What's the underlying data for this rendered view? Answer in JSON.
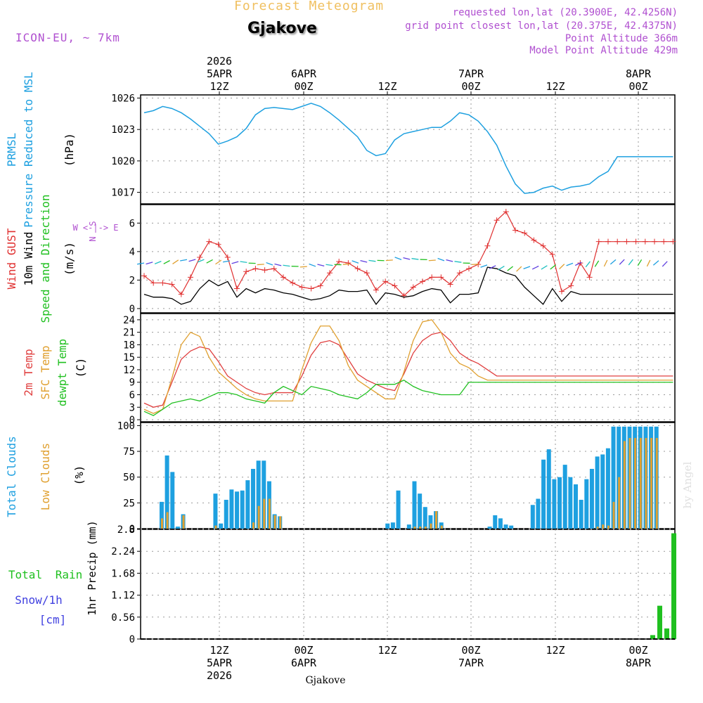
{
  "colors": {
    "title": "#f0c060",
    "city": "#000000",
    "info": "#b050d0",
    "pressure": "#1ea0e0",
    "gust": "#e03030",
    "wind": "#000000",
    "arrowlabel": "#20c020",
    "t2m": "#e04040",
    "sfc": "#e0a030",
    "dew": "#20c020",
    "totalcloud": "#1ea0e0",
    "lowcloud": "#e0a030",
    "rain": "#20c020",
    "snow": "#4040e0",
    "compass": "#b050d0"
  },
  "header": {
    "title": "Forecast Meteogram",
    "city": "Gjakove",
    "model": "ICON-EU, ~ 7km",
    "requested": "requested lon,lat (20.3900E, 42.4256N)",
    "grid": "grid point closest lon,lat (20.375E, 42.4375N)",
    "point_alt": "Point Altitude 366m",
    "model_alt": "Model Point Altitude 429m"
  },
  "time_axis": {
    "top": [
      [
        "2026",
        "5APR",
        "12Z"
      ],
      [
        "",
        "6APR",
        "00Z"
      ],
      [
        "",
        "",
        "12Z"
      ],
      [
        "",
        "7APR",
        "00Z"
      ],
      [
        "",
        "",
        "12Z"
      ],
      [
        "",
        "8APR",
        "00Z"
      ]
    ],
    "bottom": [
      [
        "12Z",
        "5APR",
        "2026"
      ],
      [
        "00Z",
        "6APR",
        ""
      ],
      [
        "12Z",
        "",
        ""
      ],
      [
        "00Z",
        "7APR",
        ""
      ],
      [
        "12Z",
        "",
        ""
      ],
      [
        "00Z",
        "8APR",
        ""
      ]
    ],
    "footer": "Gjakove"
  },
  "panel_labels": {
    "p1": [
      "PRMSL",
      "Pressure Reduced to MSL",
      "(hPa)"
    ],
    "p2": [
      "Wind GUST",
      "10m Wind",
      "Speed and Direction",
      "(m/s)"
    ],
    "p3": [
      "2m Temp",
      "SFC Temp",
      "dewpt Temp",
      "(C)"
    ],
    "p4": [
      "Total Clouds",
      "Low Clouds",
      "(%)"
    ],
    "p5": [
      "Total",
      "Rain",
      "Snow/1h",
      "[cm]",
      "1hr Precip (mm)"
    ],
    "compass": [
      "N",
      "W <-|-> E",
      "S"
    ],
    "watermark": "by Angel"
  },
  "chart_data": [
    {
      "type": "line",
      "title": "PRMSL Pressure Reduced to MSL",
      "ylabel": "hPa",
      "x_hours_from_start": [
        0,
        2,
        4,
        6,
        8,
        10,
        12,
        14,
        16,
        18,
        20,
        22,
        24,
        26,
        28,
        30,
        32,
        34,
        36,
        38,
        40,
        42,
        44,
        46,
        48,
        50,
        52,
        54,
        56,
        58,
        60,
        62,
        64,
        66,
        68,
        70,
        72,
        74,
        76,
        78,
        80,
        82,
        84,
        86,
        88,
        90,
        92,
        94,
        96,
        98,
        100,
        102,
        104,
        106,
        108,
        110,
        112,
        114
      ],
      "ticks": [
        1017,
        1020,
        1023,
        1026
      ],
      "ylim": [
        1015.9,
        1026.3
      ],
      "series": [
        {
          "name": "PRMSL",
          "values": [
            1024.6,
            1024.8,
            1025.2,
            1025.0,
            1024.6,
            1024.0,
            1023.3,
            1022.6,
            1021.6,
            1021.9,
            1022.3,
            1023.1,
            1024.4,
            1025.0,
            1025.1,
            1025.0,
            1024.9,
            1025.2,
            1025.5,
            1025.2,
            1024.6,
            1023.9,
            1023.1,
            1022.3,
            1021.0,
            1020.5,
            1020.7,
            1022.0,
            1022.6,
            1022.8,
            1023.0,
            1023.2,
            1023.2,
            1023.8,
            1024.6,
            1024.4,
            1023.8,
            1022.8,
            1021.5,
            1019.5,
            1017.8,
            1016.9,
            1017.0,
            1017.4,
            1017.6,
            1017.2,
            1017.5,
            1017.6,
            1017.8,
            1018.5,
            1019.0,
            1020.4,
            1020.4,
            1020.4,
            1020.4,
            1020.4,
            1020.4,
            1020.4
          ]
        }
      ]
    },
    {
      "type": "line",
      "title": "Wind GUST / 10m Wind Speed and Direction",
      "ylabel": "m/s",
      "ticks": [
        0,
        2,
        4,
        6
      ],
      "ylim": [
        -0.3,
        7.3
      ],
      "gust_x": [
        0,
        2,
        4,
        6,
        8,
        10,
        12,
        14,
        16,
        18,
        20,
        22,
        24,
        26,
        28,
        30,
        32,
        34,
        36,
        38,
        40,
        42,
        44,
        46,
        48,
        50,
        52,
        54,
        56,
        58,
        60,
        62,
        64,
        66,
        68,
        70,
        72,
        74,
        76,
        78,
        80,
        82,
        84,
        86,
        88,
        90,
        92,
        94,
        96,
        98,
        100,
        102,
        104,
        106,
        108,
        110,
        112,
        114
      ],
      "series": [
        {
          "name": "Wind GUST",
          "values": [
            2.3,
            1.8,
            1.8,
            1.7,
            1.0,
            2.2,
            3.6,
            4.7,
            4.5,
            3.6,
            1.4,
            2.6,
            2.8,
            2.7,
            2.8,
            2.2,
            1.8,
            1.5,
            1.4,
            1.6,
            2.5,
            3.3,
            3.2,
            2.8,
            2.5,
            1.3,
            1.9,
            1.6,
            0.9,
            1.5,
            1.9,
            2.2,
            2.2,
            1.7,
            2.5,
            2.8,
            3.1,
            4.4,
            6.2,
            6.8,
            5.5,
            5.3,
            4.8,
            4.4,
            3.8,
            1.2,
            1.6,
            3.2,
            2.2,
            4.7,
            4.7,
            4.7,
            4.7,
            4.7,
            4.7,
            4.7,
            4.7,
            4.7
          ]
        },
        {
          "name": "10m Wind",
          "values": [
            1.0,
            0.8,
            0.8,
            0.7,
            0.3,
            0.5,
            1.4,
            2.0,
            1.6,
            1.9,
            0.8,
            1.4,
            1.1,
            1.4,
            1.3,
            1.1,
            1.0,
            0.8,
            0.6,
            0.7,
            0.9,
            1.3,
            1.2,
            1.2,
            1.3,
            0.3,
            1.1,
            1.0,
            0.8,
            0.9,
            1.2,
            1.4,
            1.3,
            0.4,
            1.0,
            1.0,
            1.1,
            2.9,
            2.8,
            2.5,
            2.3,
            1.5,
            0.9,
            0.3,
            1.4,
            0.5,
            1.2,
            1.0,
            1.0,
            1.0,
            1.0,
            1.0,
            1.0,
            1.0,
            1.0,
            1.0,
            1.0,
            1.0
          ]
        }
      ]
    },
    {
      "type": "line",
      "title": "2m Temp / SFC Temp / dewpt Temp",
      "ylabel": "C",
      "x_hours_from_start": [
        0,
        2,
        4,
        6,
        8,
        10,
        12,
        14,
        16,
        18,
        20,
        22,
        24,
        26,
        28,
        30,
        32,
        34,
        36,
        38,
        40,
        42,
        44,
        46,
        48,
        50,
        52,
        54,
        56,
        58,
        60,
        62,
        64,
        66,
        68,
        70,
        72,
        74,
        76,
        78,
        80,
        82,
        84,
        86,
        88,
        90,
        92,
        94,
        96,
        98,
        100,
        102,
        104,
        106,
        108,
        110,
        112,
        114
      ],
      "ticks": [
        0,
        3,
        6,
        9,
        12,
        15,
        18,
        21,
        24
      ],
      "ylim": [
        -0.5,
        25.5
      ],
      "series": [
        {
          "name": "2m Temp",
          "values": [
            4.0,
            3.0,
            3.5,
            9.0,
            14.5,
            16.5,
            17.5,
            17.0,
            14.0,
            10.5,
            9.0,
            7.5,
            6.5,
            6.0,
            6.5,
            6.5,
            6.5,
            10.5,
            15.5,
            18.5,
            19.0,
            18.0,
            14.5,
            11.0,
            9.5,
            8.5,
            7.5,
            7.0,
            11.0,
            16.0,
            19.0,
            20.5,
            21.0,
            19.0,
            16.0,
            14.5,
            13.5,
            12.0,
            10.5,
            10.5,
            10.5,
            10.5,
            10.5,
            10.5,
            10.5,
            10.5,
            10.5,
            10.5,
            10.5,
            10.5,
            10.5,
            10.5,
            10.5,
            10.5,
            10.5,
            10.5,
            10.5,
            10.5
          ]
        },
        {
          "name": "SFC Temp",
          "values": [
            2.5,
            1.5,
            2.5,
            10.0,
            18.0,
            21.0,
            20.0,
            15.0,
            11.5,
            9.5,
            7.5,
            6.0,
            5.0,
            4.5,
            4.5,
            4.5,
            4.5,
            12.0,
            18.5,
            22.5,
            22.5,
            19.0,
            13.0,
            9.5,
            8.0,
            6.5,
            5.0,
            5.0,
            11.5,
            19.0,
            23.5,
            24.0,
            21.0,
            16.0,
            13.5,
            12.5,
            10.5,
            9.5,
            9.5,
            9.5,
            9.5,
            9.5,
            9.5,
            9.5,
            9.5,
            9.5,
            9.5,
            9.5,
            9.5,
            9.5,
            9.5,
            9.5,
            9.5,
            9.5,
            9.5,
            9.5,
            9.5,
            9.5
          ]
        },
        {
          "name": "dewpt Temp",
          "values": [
            2.0,
            1.0,
            2.5,
            4.0,
            4.5,
            5.0,
            4.5,
            5.5,
            6.5,
            6.5,
            6.0,
            5.0,
            4.5,
            4.0,
            6.5,
            8.0,
            7.0,
            6.0,
            8.0,
            7.5,
            7.0,
            6.0,
            5.5,
            5.0,
            6.5,
            8.5,
            8.5,
            8.5,
            9.5,
            8.0,
            7.0,
            6.5,
            6.0,
            6.0,
            6.0,
            9.0,
            9.0,
            9.0,
            9.0,
            9.0,
            9.0,
            9.0,
            9.0,
            9.0,
            9.0,
            9.0,
            9.0,
            9.0,
            9.0,
            9.0,
            9.0,
            9.0,
            9.0,
            9.0,
            9.0,
            9.0,
            9.0,
            9.0
          ]
        }
      ]
    },
    {
      "type": "bar",
      "title": "Total Clouds / Low Clouds",
      "ylabel": "%",
      "ticks": [
        0,
        25,
        50,
        75,
        100
      ],
      "ylim": [
        0,
        103
      ],
      "series": [
        {
          "name": "Total Clouds",
          "values": [
            0,
            0,
            0,
            26,
            71,
            55,
            2,
            14,
            0,
            0,
            0,
            0,
            0,
            34,
            5,
            28,
            38,
            36,
            37,
            47,
            58,
            66,
            66,
            46,
            14,
            12,
            0,
            0,
            0,
            0,
            0,
            0,
            0,
            0,
            0,
            0,
            0,
            0,
            0,
            0,
            0,
            0,
            0,
            0,
            0,
            5,
            6,
            37,
            0,
            4,
            46,
            34,
            21,
            13,
            17,
            6,
            0,
            0,
            0,
            0,
            0,
            0,
            0,
            0,
            2,
            13,
            10,
            4,
            3,
            0,
            0,
            0,
            23,
            29,
            67,
            77,
            48,
            50,
            62,
            50,
            43,
            28,
            48,
            58,
            70,
            72,
            78,
            99,
            99,
            99,
            99,
            99,
            99,
            99,
            99,
            99
          ]
        },
        {
          "name": "Low Clouds",
          "values": [
            0,
            0,
            0,
            10,
            16,
            0,
            0,
            13,
            0,
            0,
            0,
            0,
            0,
            3,
            0,
            0,
            0,
            0,
            0,
            0,
            6,
            22,
            29,
            29,
            13,
            12,
            0,
            0,
            0,
            0,
            0,
            0,
            0,
            0,
            0,
            0,
            0,
            0,
            0,
            0,
            0,
            0,
            0,
            0,
            0,
            0,
            0,
            0,
            0,
            0,
            2,
            2,
            2,
            5,
            17,
            3,
            0,
            0,
            0,
            0,
            0,
            0,
            0,
            0,
            0,
            0,
            0,
            0,
            0,
            0,
            0,
            0,
            0,
            0,
            0,
            0,
            0,
            0,
            0,
            0,
            0,
            0,
            0,
            0,
            2,
            4,
            3,
            26,
            50,
            85,
            88,
            88,
            88,
            88,
            88,
            88
          ]
        }
      ]
    },
    {
      "type": "bar",
      "title": "1hr Precip",
      "ylabel": "1hr Precip (mm)",
      "ticks": [
        0,
        0.56,
        1.12,
        1.68,
        2.24,
        2.8
      ],
      "ylim": [
        0,
        2.8
      ],
      "series": [
        {
          "name": "Total Rain",
          "values": [
            0.1,
            0.85,
            0.27,
            2.7
          ]
        }
      ]
    }
  ]
}
